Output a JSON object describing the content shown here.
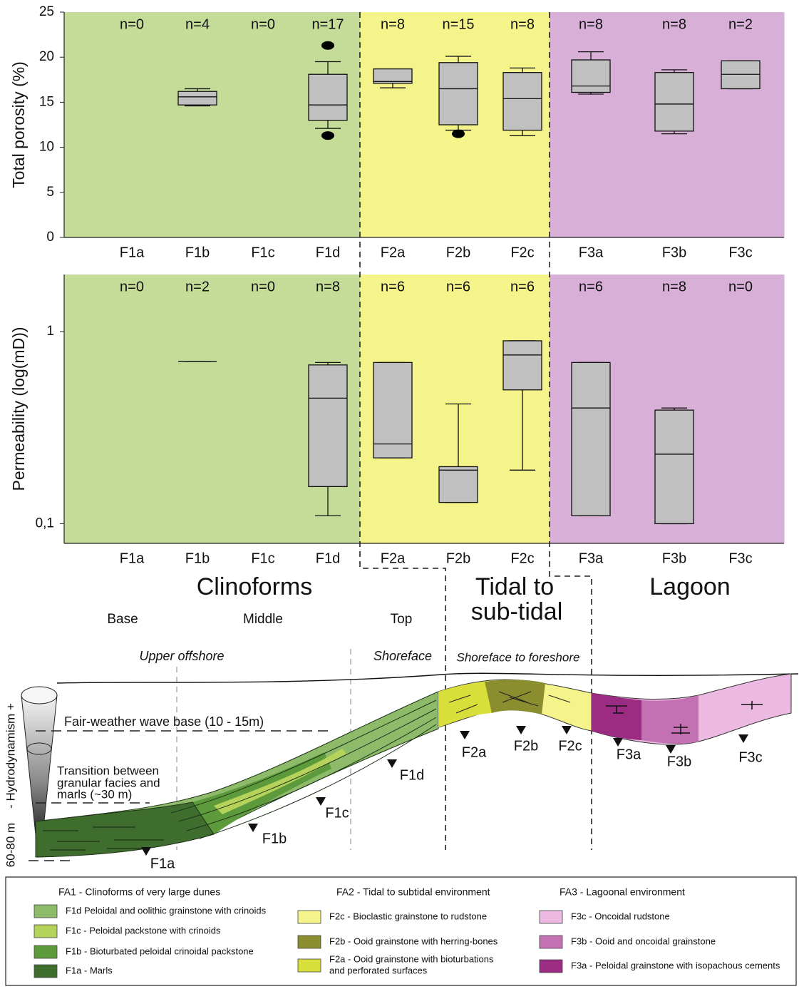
{
  "chart_data": [
    {
      "type": "box",
      "y_label": "Total porosity (%)",
      "categories": [
        "F1a",
        "F1b",
        "F1c",
        "F1d",
        "F2a",
        "F2b",
        "F2c",
        "F3a",
        "F3b",
        "F3c"
      ],
      "count_labels": [
        "n=0",
        "n=4",
        "n=0",
        "n=17",
        "n=8",
        "n=15",
        "n=8",
        "n=8",
        "n=8",
        "n=2"
      ],
      "category_colors": [
        "#c5dc98",
        "#c5dc98",
        "#c5dc98",
        "#c5dc98",
        "#f5f48a",
        "#f5f48a",
        "#f5f48a",
        "#d8afd6",
        "#d8afd6",
        "#d8afd6"
      ],
      "box_color": "#c0c0c0",
      "boxes": [
        null,
        {
          "min": 14.6,
          "q1": 14.7,
          "median": 15.6,
          "q3": 16.2,
          "max": 16.5
        },
        null,
        {
          "min": 12.1,
          "q1": 13.0,
          "median": 14.7,
          "q3": 18.1,
          "max": 19.5,
          "outliers": [
            21.3,
            11.3
          ]
        },
        {
          "min": 16.6,
          "q1": 17.1,
          "median": 17.3,
          "q3": 18.7,
          "max": 18.7
        },
        {
          "min": 11.9,
          "q1": 12.5,
          "median": 16.5,
          "q3": 19.4,
          "max": 20.1,
          "outliers": [
            11.5
          ]
        },
        {
          "min": 11.3,
          "q1": 11.9,
          "median": 15.4,
          "q3": 18.3,
          "max": 18.8
        },
        {
          "min": 15.9,
          "q1": 16.1,
          "median": 16.8,
          "q3": 19.7,
          "max": 20.6
        },
        {
          "min": 11.5,
          "q1": 11.8,
          "median": 14.8,
          "q3": 18.3,
          "max": 18.6
        },
        {
          "min": 16.5,
          "q1": 16.5,
          "median": 18.1,
          "q3": 19.6,
          "max": 19.6
        }
      ],
      "ylim": [
        0,
        25
      ],
      "yticks": [
        0,
        5,
        10,
        15,
        20,
        25
      ]
    },
    {
      "type": "box",
      "y_label": "Permeability (log(mD))",
      "log_scale": true,
      "categories": [
        "F1a",
        "F1b",
        "F1c",
        "F1d",
        "F2a",
        "F2b",
        "F2c",
        "F3a",
        "F3b",
        "F3c"
      ],
      "count_labels": [
        "n=0",
        "n=2",
        "n=0",
        "n=8",
        "n=6",
        "n=6",
        "n=6",
        "n=6",
        "n=8",
        "n=0"
      ],
      "category_colors": [
        "#c5dc98",
        "#c5dc98",
        "#c5dc98",
        "#c5dc98",
        "#f5f48a",
        "#f5f48a",
        "#f5f48a",
        "#d8afd6",
        "#d8afd6",
        "#d8afd6"
      ],
      "box_color": "#c0c0c0",
      "boxes": [
        null,
        {
          "min": 0.7,
          "q1": 0.7,
          "median": 0.7,
          "q3": 0.7,
          "max": 0.7
        },
        null,
        {
          "min": 0.11,
          "q1": 0.156,
          "median": 0.45,
          "q3": 0.67,
          "max": 0.69
        },
        {
          "min": 0.22,
          "q1": 0.22,
          "median": 0.26,
          "q3": 0.69,
          "max": 0.69
        },
        {
          "min": 0.129,
          "q1": 0.129,
          "median": 0.19,
          "q3": 0.198,
          "max": 0.42
        },
        {
          "min": 0.19,
          "q1": 0.497,
          "median": 0.755,
          "q3": 0.895,
          "max": 0.895
        },
        {
          "min": 0.11,
          "q1": 0.11,
          "median": 0.4,
          "q3": 0.69,
          "max": 0.69
        },
        {
          "min": 0.1,
          "q1": 0.1,
          "median": 0.23,
          "q3": 0.39,
          "max": 0.4
        },
        null
      ],
      "ylim": [
        0.079,
        1.98
      ],
      "yticks": [
        1,
        {
          "value": 0.1,
          "label": "0,1"
        }
      ]
    }
  ],
  "diagram": {
    "clinoforms": "Clinoforms",
    "tidal": [
      "Tidal to",
      "sub-tidal"
    ],
    "lagoon": "Lagoon",
    "zones": [
      "Base",
      "Middle",
      "Top"
    ],
    "settings": [
      "Upper offshore",
      "Shoreface",
      "Shoreface to foreshore"
    ],
    "wave_base": "Fair-weather wave base (10 - 15m)",
    "transition": [
      "Transition between",
      "granular facies and",
      "marls (~30 m)"
    ],
    "hydrodynamism": "- Hydrodynamism +",
    "depth": "60-80 m",
    "facies_labels": [
      "F1a",
      "F1b",
      "F1c",
      "F1d",
      "F2a",
      "F2b",
      "F2c",
      "F3a",
      "F3b",
      "F3c"
    ]
  },
  "legend": {
    "groups": [
      {
        "title": "FA1 - Clinoforms of very large dunes",
        "items": [
          {
            "lines": [
              "F1d Peloidal and oolithic  grainstone with crinoids"
            ],
            "color": "#8dbb6a"
          },
          {
            "lines": [
              "F1c - Peloidal packstone with crinoids"
            ],
            "color": "#b5d35a"
          },
          {
            "lines": [
              "F1b - Bioturbated peloidal crinoidal packstone"
            ],
            "color": "#5c9a3c"
          },
          {
            "lines": [
              "F1a - Marls"
            ],
            "color": "#3e6d2e"
          }
        ]
      },
      {
        "title": "FA2 - Tidal to subtidal environment",
        "items": [
          {
            "lines": [
              "F2c - Bioclastic grainstone to rudstone"
            ],
            "color": "#f5f48a"
          },
          {
            "lines": [
              "F2b - Ooid grainstone with herring-bones"
            ],
            "color": "#8b8e2f"
          },
          {
            "lines": [
              "F2a - Ooid grainstone with bioturbations",
              "and perforated surfaces"
            ],
            "color": "#d8de3a"
          }
        ]
      },
      {
        "title": "FA3 - Lagoonal environment",
        "items": [
          {
            "lines": [
              "F3c - Oncoidal rudstone"
            ],
            "color": "#ebb9e1"
          },
          {
            "lines": [
              "F3b - Ooid and oncoidal grainstone"
            ],
            "color": "#c471b3"
          },
          {
            "lines": [
              "F3a - Peloidal grainstone with isopachous cements"
            ],
            "color": "#9b2b83"
          }
        ]
      }
    ]
  }
}
